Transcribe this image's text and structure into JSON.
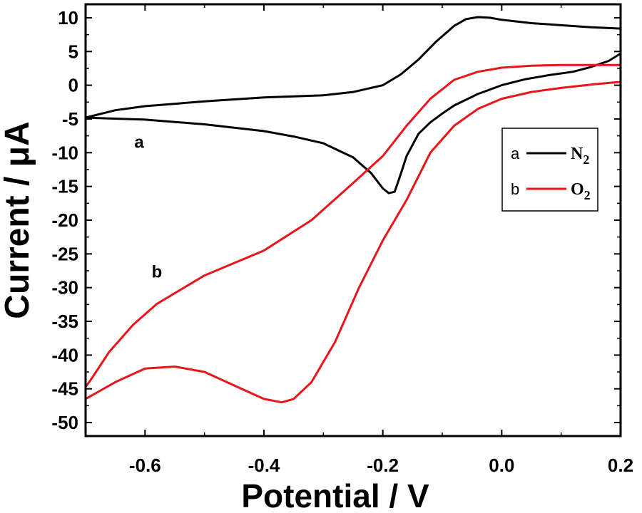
{
  "chart_data": {
    "type": "line",
    "xlabel": "Potential / V",
    "ylabel": "Current / μA",
    "xlim": [
      -0.7,
      0.2
    ],
    "ylim": [
      -52,
      12
    ],
    "x_ticks": [
      -0.6,
      -0.4,
      -0.2,
      0.0,
      0.2
    ],
    "x_tick_labels": [
      "-0.6",
      "-0.4",
      "-0.2",
      "0.0",
      "0.2"
    ],
    "y_ticks": [
      10,
      5,
      0,
      -5,
      -10,
      -15,
      -20,
      -25,
      -30,
      -35,
      -40,
      -45,
      -50
    ],
    "y_tick_labels": [
      "10",
      "5",
      "0",
      "-5",
      "-10",
      "-15",
      "-20",
      "-25",
      "-30",
      "-35",
      "-40",
      "-45",
      "-50"
    ],
    "grid": false,
    "legend_position": "right",
    "legend": [
      {
        "key": "a",
        "label": "N",
        "sub": "2",
        "color": "#000000"
      },
      {
        "key": "b",
        "label": "O",
        "sub": "2",
        "color": "#e8161b"
      }
    ],
    "annotations": [
      {
        "text": "a",
        "x": -0.61,
        "y": -9.3
      },
      {
        "text": "b",
        "x": -0.58,
        "y": -28.5
      }
    ],
    "series": [
      {
        "color": "#000000",
        "points": [
          [
            -0.7,
            -4.8
          ],
          [
            -0.65,
            -3.7
          ],
          [
            -0.6,
            -3.1
          ],
          [
            -0.5,
            -2.4
          ],
          [
            -0.4,
            -1.8
          ],
          [
            -0.3,
            -1.5
          ],
          [
            -0.25,
            -1.0
          ],
          [
            -0.2,
            0.0
          ],
          [
            -0.17,
            1.6
          ],
          [
            -0.14,
            3.8
          ],
          [
            -0.11,
            6.5
          ],
          [
            -0.08,
            8.8
          ],
          [
            -0.06,
            9.8
          ],
          [
            -0.04,
            10.1
          ],
          [
            -0.02,
            10.0
          ],
          [
            0.0,
            9.7
          ],
          [
            0.05,
            9.2
          ],
          [
            0.1,
            8.9
          ],
          [
            0.15,
            8.6
          ],
          [
            0.2,
            8.4
          ],
          [
            0.2,
            4.7
          ],
          [
            0.18,
            3.6
          ],
          [
            0.15,
            2.7
          ],
          [
            0.12,
            2.0
          ],
          [
            0.08,
            1.5
          ],
          [
            0.04,
            0.9
          ],
          [
            0.0,
            0.0
          ],
          [
            -0.04,
            -1.3
          ],
          [
            -0.08,
            -3.0
          ],
          [
            -0.1,
            -4.2
          ],
          [
            -0.12,
            -5.5
          ],
          [
            -0.14,
            -7.2
          ],
          [
            -0.16,
            -10.5
          ],
          [
            -0.17,
            -13.2
          ],
          [
            -0.18,
            -15.8
          ],
          [
            -0.19,
            -16.0
          ],
          [
            -0.2,
            -15.3
          ],
          [
            -0.22,
            -13.0
          ],
          [
            -0.25,
            -10.7
          ],
          [
            -0.3,
            -8.6
          ],
          [
            -0.35,
            -7.6
          ],
          [
            -0.4,
            -6.8
          ],
          [
            -0.5,
            -5.8
          ],
          [
            -0.6,
            -5.1
          ],
          [
            -0.7,
            -4.8
          ]
        ]
      },
      {
        "color": "#e8161b",
        "points": [
          [
            -0.72,
            -47.2
          ],
          [
            -0.69,
            -43.5
          ],
          [
            -0.66,
            -39.5
          ],
          [
            -0.62,
            -35.5
          ],
          [
            -0.58,
            -32.4
          ],
          [
            -0.5,
            -28.2
          ],
          [
            -0.4,
            -24.5
          ],
          [
            -0.32,
            -20.0
          ],
          [
            -0.25,
            -14.5
          ],
          [
            -0.2,
            -10.5
          ],
          [
            -0.16,
            -6.0
          ],
          [
            -0.12,
            -2.0
          ],
          [
            -0.08,
            0.8
          ],
          [
            -0.04,
            2.0
          ],
          [
            0.0,
            2.6
          ],
          [
            0.05,
            2.9
          ],
          [
            0.1,
            3.0
          ],
          [
            0.15,
            3.0
          ],
          [
            0.2,
            3.0
          ],
          [
            0.2,
            0.5
          ],
          [
            0.15,
            0.1
          ],
          [
            0.1,
            -0.4
          ],
          [
            0.05,
            -1.0
          ],
          [
            0.0,
            -2.0
          ],
          [
            -0.04,
            -3.5
          ],
          [
            -0.08,
            -6.0
          ],
          [
            -0.12,
            -10.0
          ],
          [
            -0.16,
            -17.0
          ],
          [
            -0.2,
            -23.0
          ],
          [
            -0.24,
            -30.0
          ],
          [
            -0.28,
            -38.0
          ],
          [
            -0.32,
            -44.0
          ],
          [
            -0.35,
            -46.5
          ],
          [
            -0.37,
            -47.0
          ],
          [
            -0.4,
            -46.5
          ],
          [
            -0.45,
            -44.5
          ],
          [
            -0.5,
            -42.5
          ],
          [
            -0.55,
            -41.7
          ],
          [
            -0.6,
            -42.0
          ],
          [
            -0.65,
            -44.0
          ],
          [
            -0.7,
            -46.5
          ],
          [
            -0.72,
            -47.2
          ]
        ]
      }
    ]
  }
}
